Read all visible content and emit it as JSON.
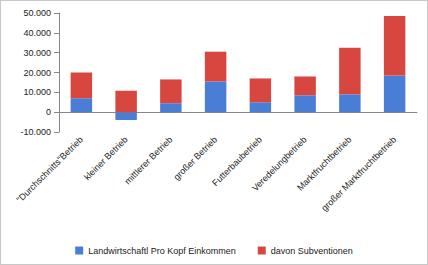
{
  "chart_data": {
    "type": "bar",
    "categories": [
      "\"Durchschnitts\"Betrieb",
      "kleiner Betrieb",
      "mittlerer Betrieb",
      "großer Betrieb",
      "Futterbaubetrieb",
      "Veredelungbetrieb",
      "Marktfruchtbetrieb",
      "großer Marktfruchtbetrieb"
    ],
    "series": [
      {
        "name": "Landwirtschaftl Pro Kopf Einkommen",
        "color": "#4a7ed6",
        "values": [
          7000,
          -4000,
          4500,
          15500,
          5000,
          8500,
          9000,
          18500
        ]
      },
      {
        "name": "davon Subventionen",
        "color": "#d8473f",
        "values": [
          13000,
          10800,
          12000,
          15000,
          12000,
          9500,
          23500,
          30000
        ]
      }
    ],
    "ylim": [
      -10000,
      50000
    ],
    "yticks": [
      {
        "value": -10000,
        "label": "-10.000"
      },
      0,
      {
        "value": 10000,
        "label": "10.000"
      },
      {
        "value": 20000,
        "label": "20.000"
      },
      {
        "value": 30000,
        "label": "30.000"
      },
      {
        "value": 40000,
        "label": "40.000"
      },
      {
        "value": 50000,
        "label": "50.000"
      }
    ],
    "stacked": true,
    "grid": false,
    "legend": "bottom"
  }
}
